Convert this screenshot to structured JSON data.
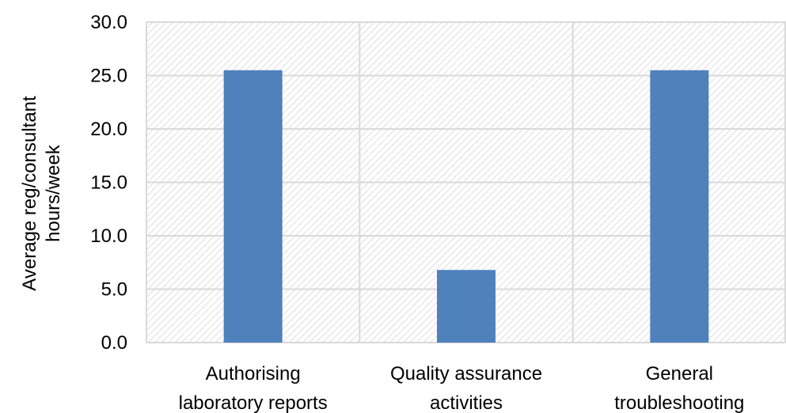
{
  "chart_data": {
    "type": "bar",
    "title": "",
    "xlabel": "",
    "ylabel_lines": [
      "Average reg/consultant",
      "hours/week"
    ],
    "categories": [
      [
        "Authorising",
        "laboratory reports"
      ],
      [
        "Quality assurance",
        "activities"
      ],
      [
        "General",
        "troubleshooting"
      ]
    ],
    "values": [
      25.5,
      6.8,
      25.5
    ],
    "ylim": [
      0,
      30
    ],
    "yticks": [
      "0.0",
      "5.0",
      "10.0",
      "15.0",
      "20.0",
      "25.0",
      "30.0"
    ],
    "grid": true,
    "legend": "none",
    "colors": {
      "bar": "#4f81bd",
      "grid": "#d9d9d9",
      "hatch": "#d0d0d0",
      "axis": "#d9d9d9"
    }
  }
}
